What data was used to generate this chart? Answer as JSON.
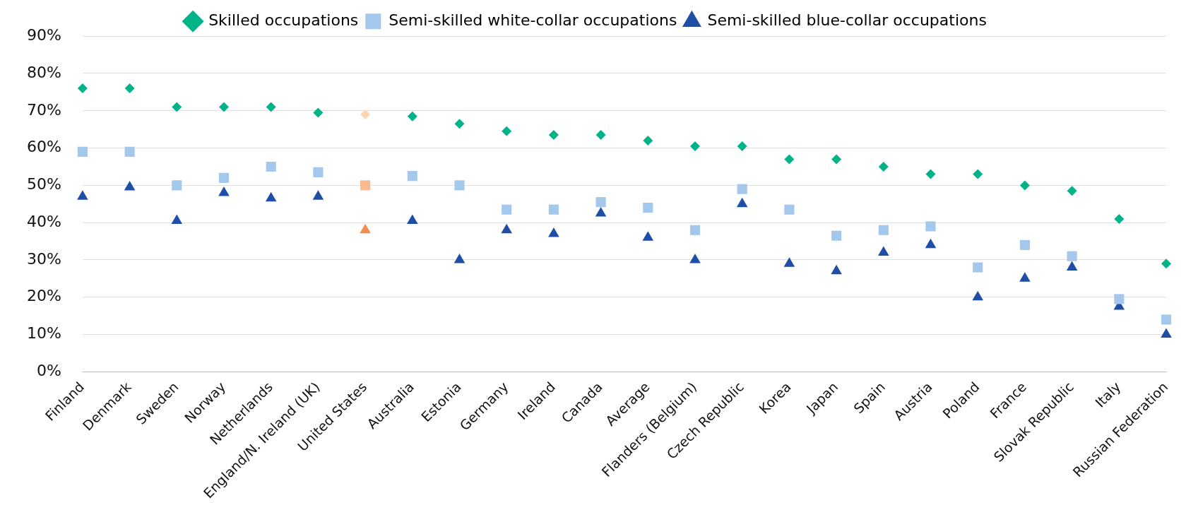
{
  "chart_data": {
    "type": "scatter",
    "categories": [
      "Finland",
      "Denmark",
      "Sweden",
      "Norway",
      "Netherlands",
      "England/N. Ireland (UK)",
      "United States",
      "Australia",
      "Estonia",
      "Germany",
      "Ireland",
      "Canada",
      "Average",
      "Flanders (Belgium)",
      "Czech Republic",
      "Korea",
      "Japan",
      "Spain",
      "Austria",
      "Poland",
      "France",
      "Slovak Republic",
      "Italy",
      "Russian Federation"
    ],
    "series": [
      {
        "name": "Skilled occupations",
        "color": "#00b388",
        "marker": "diamond",
        "colors": [
          "#00b388",
          "#00b388",
          "#00b388",
          "#00b388",
          "#00b388",
          "#00b388",
          "#fcd5b5",
          "#00b388",
          "#00b388",
          "#00b388",
          "#00b388",
          "#00b388",
          "#00b388",
          "#00b388",
          "#00b388",
          "#00b388",
          "#00b388",
          "#00b388",
          "#00b388",
          "#00b388",
          "#00b388",
          "#00b388",
          "#00b388",
          "#00b388"
        ],
        "values": [
          76,
          76,
          71,
          71,
          71,
          69.5,
          69,
          68.5,
          66.5,
          64.5,
          63.5,
          63.5,
          62,
          60.5,
          60.5,
          57,
          57,
          55,
          53,
          53,
          50,
          48.5,
          41,
          29
        ]
      },
      {
        "name": "Semi-skilled white-collar occupations",
        "color": "#a3c8ec",
        "marker": "square",
        "colors": [
          "#a3c8ec",
          "#a3c8ec",
          "#a3c8ec",
          "#a3c8ec",
          "#a3c8ec",
          "#a3c8ec",
          "#f8bb90",
          "#a3c8ec",
          "#a3c8ec",
          "#a3c8ec",
          "#a3c8ec",
          "#a3c8ec",
          "#a3c8ec",
          "#a3c8ec",
          "#a3c8ec",
          "#a3c8ec",
          "#a3c8ec",
          "#a3c8ec",
          "#a3c8ec",
          "#a3c8ec",
          "#a3c8ec",
          "#a3c8ec",
          "#a3c8ec",
          "#a3c8ec"
        ],
        "values": [
          59,
          59,
          50,
          52,
          55,
          53.5,
          50,
          52.5,
          50,
          43.5,
          43.5,
          45.5,
          44,
          38,
          49,
          43.5,
          36.5,
          38,
          39,
          28,
          34,
          31,
          19.5,
          14
        ]
      },
      {
        "name": "Semi-skilled blue-collar occupations",
        "color": "#1f4ea6",
        "marker": "triangle",
        "colors": [
          "#1f4ea6",
          "#1f4ea6",
          "#1f4ea6",
          "#1f4ea6",
          "#1f4ea6",
          "#1f4ea6",
          "#f28c4f",
          "#1f4ea6",
          "#1f4ea6",
          "#1f4ea6",
          "#1f4ea6",
          "#1f4ea6",
          "#1f4ea6",
          "#1f4ea6",
          "#1f4ea6",
          "#1f4ea6",
          "#1f4ea6",
          "#1f4ea6",
          "#1f4ea6",
          "#1f4ea6",
          "#1f4ea6",
          "#1f4ea6",
          "#1f4ea6",
          "#1f4ea6"
        ],
        "values": [
          47,
          49.5,
          40.5,
          48,
          46.5,
          47,
          38,
          40.5,
          30,
          38,
          37,
          42.5,
          36,
          30,
          45,
          29,
          27,
          32,
          34,
          20,
          25,
          28,
          17.5,
          10
        ]
      }
    ],
    "ylim": [
      0,
      90
    ],
    "yticks": [
      {
        "value": 0,
        "label": "0%"
      },
      {
        "value": 10,
        "label": "10%"
      },
      {
        "value": 20,
        "label": "20%"
      },
      {
        "value": 30,
        "label": "30%"
      },
      {
        "value": 40,
        "label": "40%"
      },
      {
        "value": 50,
        "label": "50%"
      },
      {
        "value": 60,
        "label": "60%"
      },
      {
        "value": 70,
        "label": "70%"
      },
      {
        "value": 80,
        "label": "80%"
      },
      {
        "value": 90,
        "label": "90%"
      }
    ],
    "grid": "y",
    "legend": "top"
  }
}
